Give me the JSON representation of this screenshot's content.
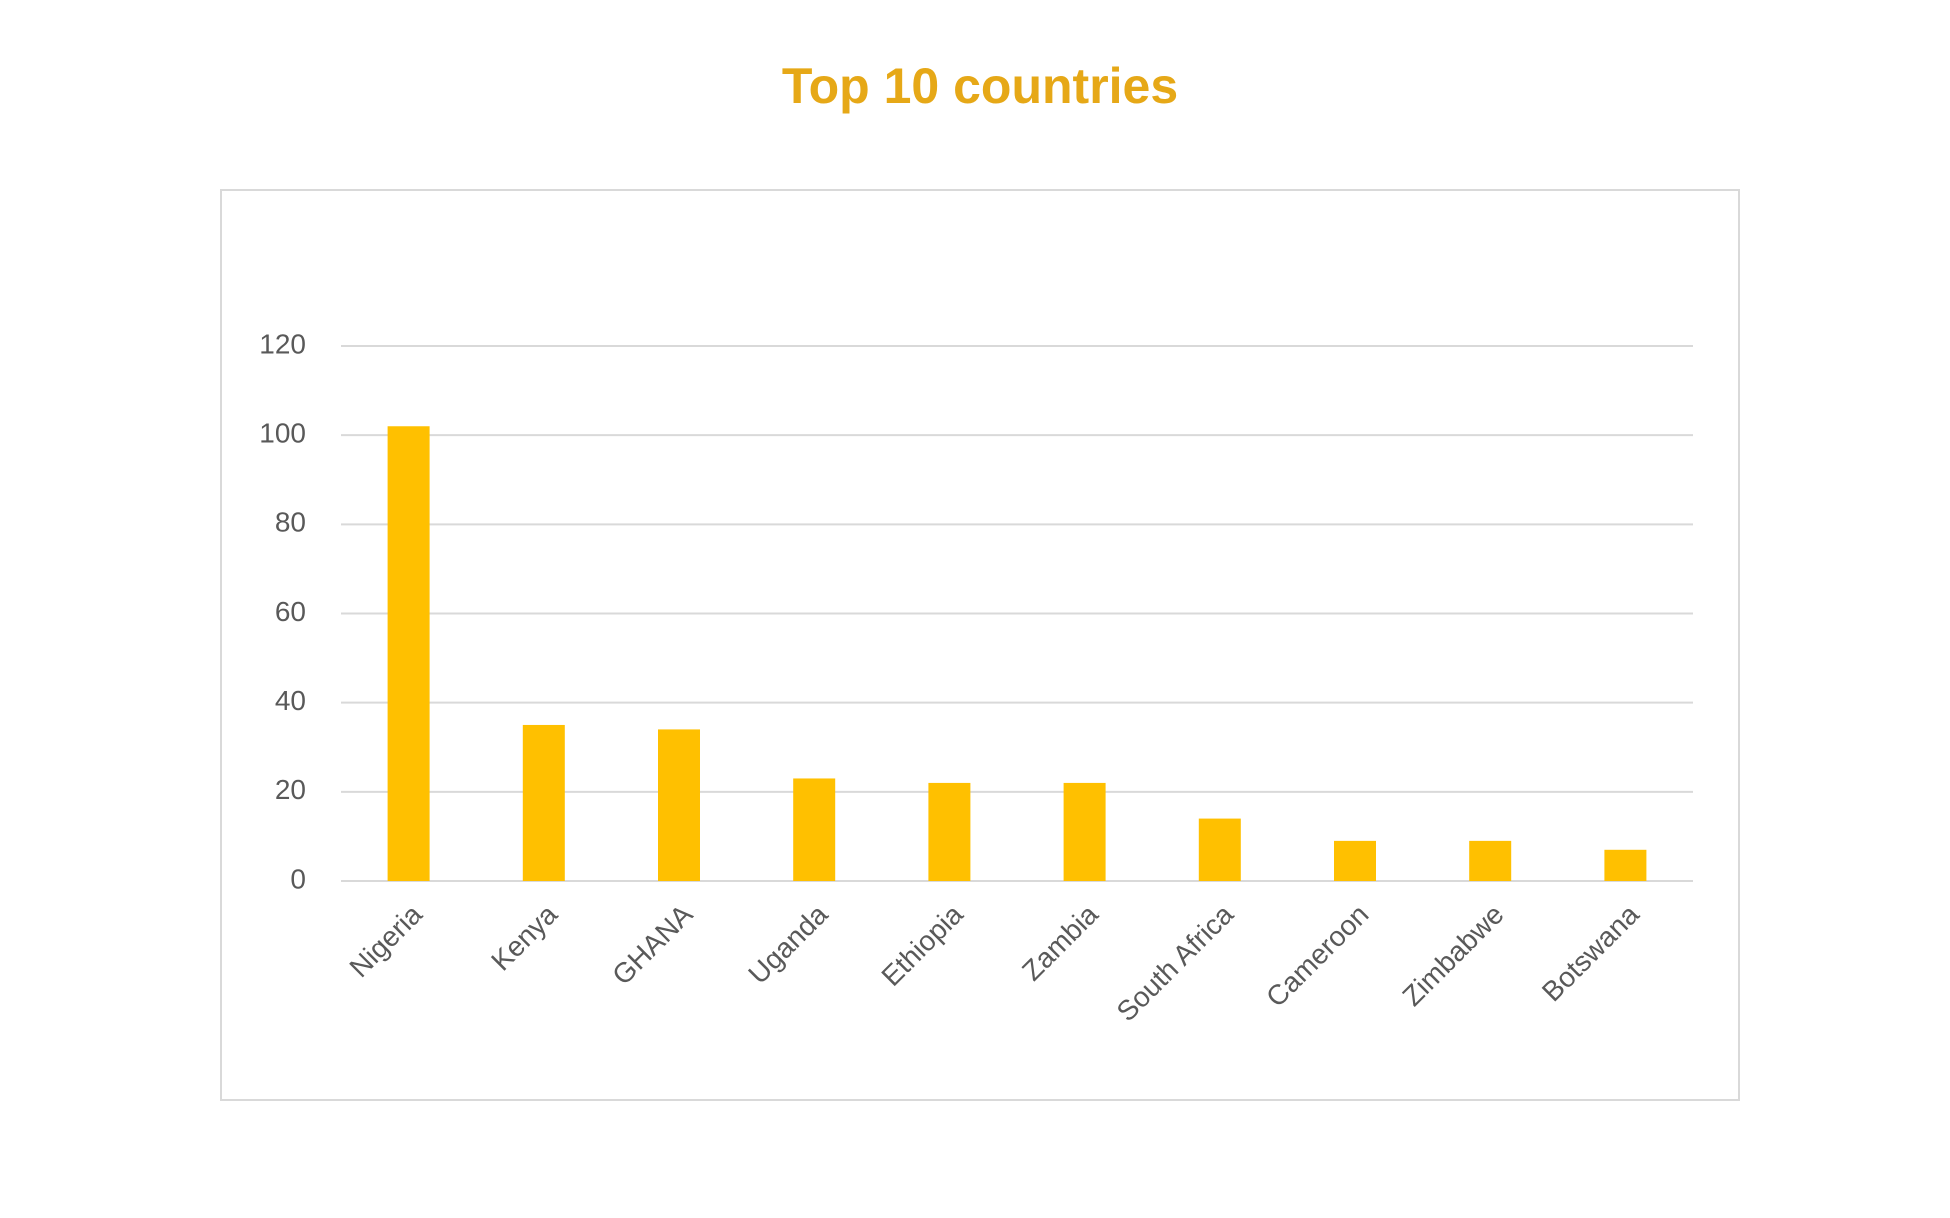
{
  "chart_data": {
    "type": "bar",
    "title": "Top 10 countries",
    "categories": [
      "Nigeria",
      "Kenya",
      "GHANA",
      "Uganda",
      "Ethiopia",
      "Zambia",
      "South Africa",
      "Cameroon",
      "Zimbabwe",
      "Botswana"
    ],
    "values": [
      102,
      35,
      34,
      23,
      22,
      22,
      14,
      9,
      9,
      7
    ],
    "color": "#ffc000",
    "ylim": [
      0,
      120
    ],
    "yticks": [
      0,
      20,
      40,
      60,
      80,
      100,
      120
    ],
    "grid": true
  }
}
